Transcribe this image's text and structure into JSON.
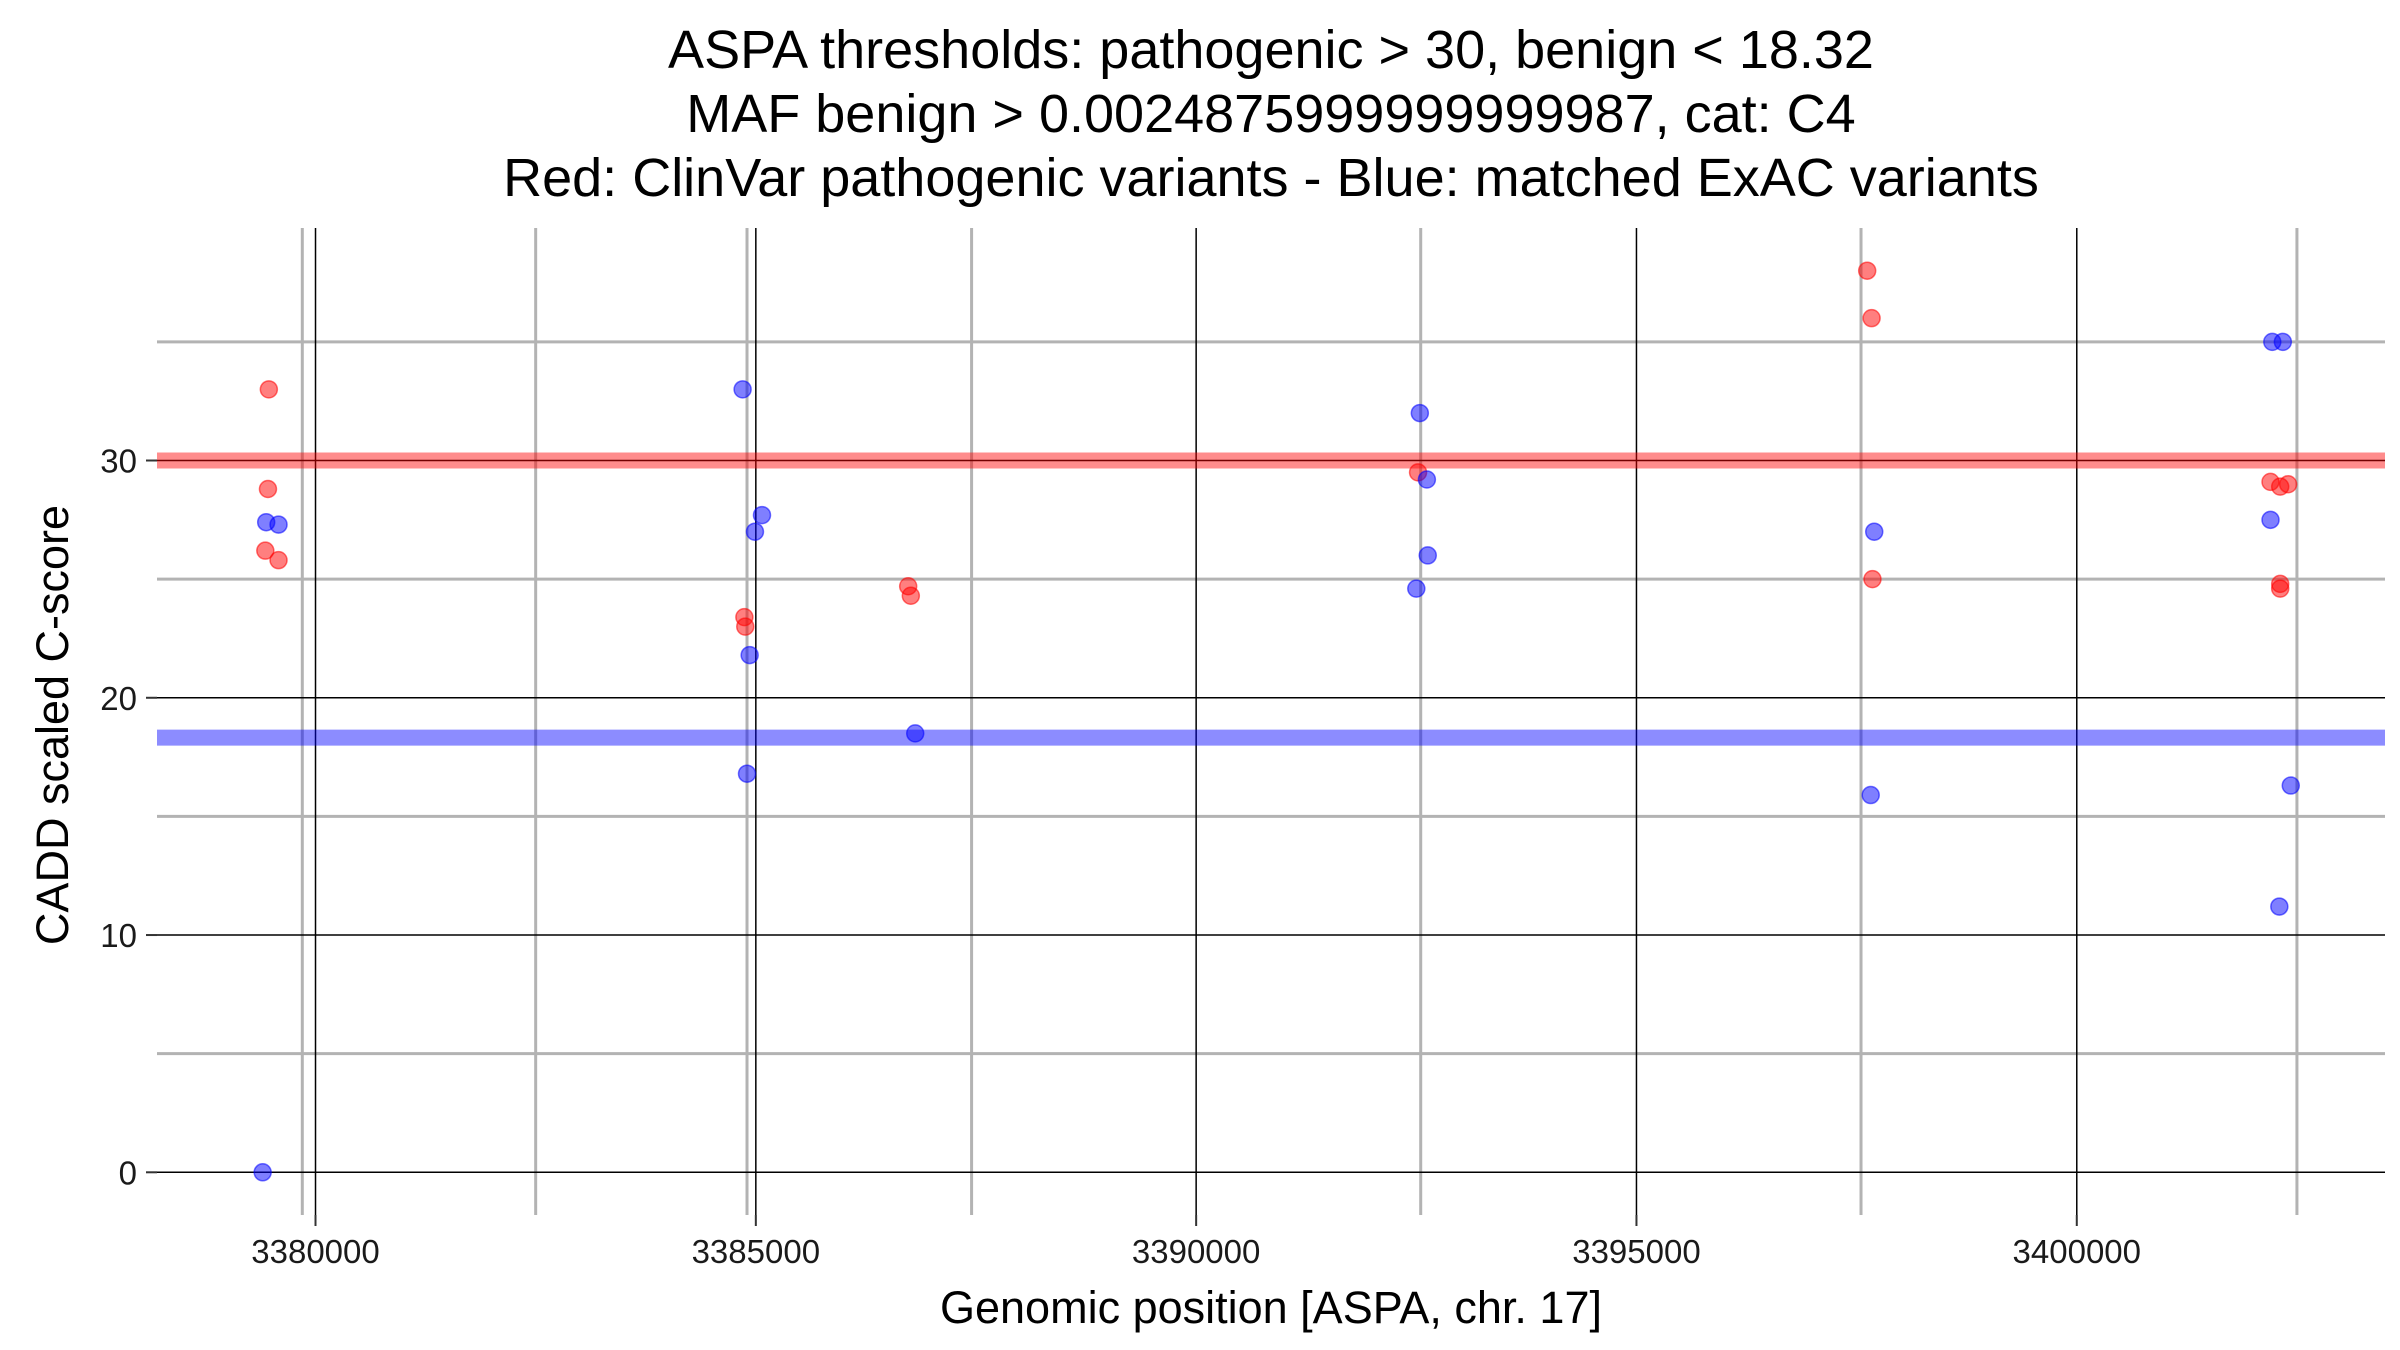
{
  "chart_data": {
    "type": "scatter",
    "title_lines": [
      "ASPA thresholds: pathogenic > 30, benign < 18.32",
      "MAF benign > 0.0024875999999999987, cat: C4",
      "Red: ClinVar pathogenic variants - Blue: matched ExAC variants"
    ],
    "xlabel": "Genomic position [ASPA, chr. 17]",
    "ylabel": "CADD scaled C-score",
    "xlim": [
      3378200,
      3403500
    ],
    "ylim": [
      -1.8,
      39.8
    ],
    "x_major_ticks": [
      3380000,
      3385000,
      3390000,
      3395000,
      3400000
    ],
    "x_major_tick_labels": [
      "3380000",
      "3385000",
      "3390000",
      "3395000",
      "3400000"
    ],
    "x_minor_gridlines": [
      3379850,
      3382500,
      3384900,
      3387450,
      3392550,
      3397550,
      3402500
    ],
    "y_major_ticks": [
      0,
      10,
      20,
      30
    ],
    "y_major_tick_labels": [
      "0",
      "10",
      "20",
      "30"
    ],
    "y_minor_gridlines": [
      5,
      15,
      25,
      35
    ],
    "thresholds": [
      {
        "name": "pathogenic",
        "value": 30,
        "color": "#ff0000"
      },
      {
        "name": "benign",
        "value": 18.32,
        "color": "#0000ff"
      }
    ],
    "series": [
      {
        "name": "ClinVar pathogenic variants",
        "color": "#ff0000",
        "points": [
          {
            "x": 3379470,
            "y": 33.0
          },
          {
            "x": 3379460,
            "y": 28.8
          },
          {
            "x": 3379430,
            "y": 26.2
          },
          {
            "x": 3379580,
            "y": 25.8
          },
          {
            "x": 3384870,
            "y": 23.4
          },
          {
            "x": 3384880,
            "y": 23.0
          },
          {
            "x": 3386730,
            "y": 24.7
          },
          {
            "x": 3386760,
            "y": 24.3
          },
          {
            "x": 3392520,
            "y": 29.5
          },
          {
            "x": 3397620,
            "y": 38.0
          },
          {
            "x": 3397670,
            "y": 36.0
          },
          {
            "x": 3397680,
            "y": 25.0
          },
          {
            "x": 3402200,
            "y": 29.1
          },
          {
            "x": 3402310,
            "y": 28.9
          },
          {
            "x": 3402400,
            "y": 29.0
          },
          {
            "x": 3402310,
            "y": 24.8
          },
          {
            "x": 3402310,
            "y": 24.6
          }
        ]
      },
      {
        "name": "matched ExAC variants",
        "color": "#0000ff",
        "points": [
          {
            "x": 3379440,
            "y": 27.4
          },
          {
            "x": 3379580,
            "y": 27.3
          },
          {
            "x": 3379400,
            "y": 0.0
          },
          {
            "x": 3384850,
            "y": 33.0
          },
          {
            "x": 3385070,
            "y": 27.7
          },
          {
            "x": 3384990,
            "y": 27.0
          },
          {
            "x": 3384930,
            "y": 21.8
          },
          {
            "x": 3384900,
            "y": 16.8
          },
          {
            "x": 3386810,
            "y": 18.5
          },
          {
            "x": 3392540,
            "y": 32.0
          },
          {
            "x": 3392620,
            "y": 29.2
          },
          {
            "x": 3392630,
            "y": 26.0
          },
          {
            "x": 3392500,
            "y": 24.6
          },
          {
            "x": 3397700,
            "y": 27.0
          },
          {
            "x": 3397660,
            "y": 15.9
          },
          {
            "x": 3402220,
            "y": 35.0
          },
          {
            "x": 3402340,
            "y": 35.0
          },
          {
            "x": 3402200,
            "y": 27.5
          },
          {
            "x": 3402430,
            "y": 16.3
          },
          {
            "x": 3402300,
            "y": 11.2
          }
        ]
      }
    ]
  }
}
